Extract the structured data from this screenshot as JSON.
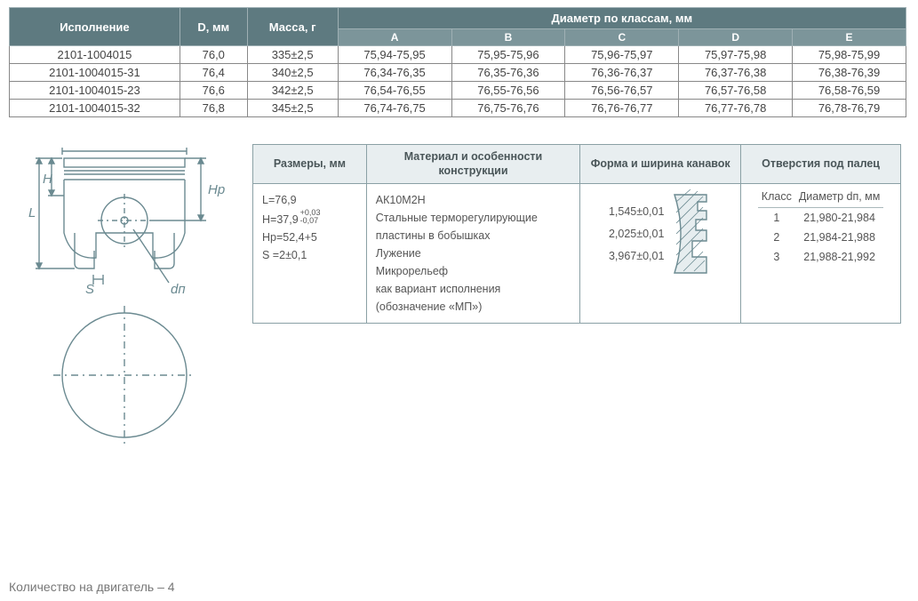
{
  "table1": {
    "headers": {
      "col1": "Исполнение",
      "col2": "D, мм",
      "col3": "Масса, г",
      "group": "Диаметр по классам, мм",
      "classes": [
        "A",
        "B",
        "C",
        "D",
        "E"
      ]
    },
    "rows": [
      {
        "exec": "2101-1004015",
        "d": "76,0",
        "mass": "335±2,5",
        "a": "75,94-75,95",
        "b": "75,95-75,96",
        "c": "75,96-75,97",
        "dcl": "75,97-75,98",
        "e": "75,98-75,99"
      },
      {
        "exec": "2101-1004015-31",
        "d": "76,4",
        "mass": "340±2,5",
        "a": "76,34-76,35",
        "b": "76,35-76,36",
        "c": "76,36-76,37",
        "dcl": "76,37-76,38",
        "e": "76,38-76,39"
      },
      {
        "exec": "2101-1004015-23",
        "d": "76,6",
        "mass": "342±2,5",
        "a": "76,54-76,55",
        "b": "76,55-76,56",
        "c": "76,56-76,57",
        "dcl": "76,57-76,58",
        "e": "76,58-76,59"
      },
      {
        "exec": "2101-1004015-32",
        "d": "76,8",
        "mass": "345±2,5",
        "a": "76,74-76,75",
        "b": "76,75-76,76",
        "c": "76,76-76,77",
        "dcl": "76,77-76,78",
        "e": "76,78-76,79"
      }
    ]
  },
  "table2": {
    "headers": {
      "dims": "Размеры, мм",
      "mat": "Материал и особенности конструкции",
      "groove": "Форма и ширина канавок",
      "pin": "Отверстия под палец"
    },
    "dims": {
      "L_label": "L=",
      "L": "76,9",
      "H_label": "H=",
      "H": "37,9",
      "H_tol_up": "+0,03",
      "H_tol_dn": "-0,07",
      "Hp_label": "Hp=",
      "Hp": "52,4+5",
      "S_label": "S =",
      "S": "2±0,1"
    },
    "material": {
      "l1": "АК10М2Н",
      "l2": "Стальные терморегулирующие пластины в бобышках",
      "l3": "Лужение",
      "l4": "Микрорельеф",
      "l5": "как вариант исполнения",
      "l6": "(обозначение «МП»)"
    },
    "grooves": [
      "1,545±0,01",
      "2,025±0,01",
      "3,967±0,01"
    ],
    "pin": {
      "h_class": "Класс",
      "h_dia": "Диаметр dп, мм",
      "rows": [
        {
          "k": "1",
          "v": "21,980-21,984"
        },
        {
          "k": "2",
          "v": "21,984-21,988"
        },
        {
          "k": "3",
          "v": "21,988-21,992"
        }
      ]
    }
  },
  "drawing_labels": {
    "L": "L",
    "H": "H",
    "Hp": "Hp",
    "S": "S",
    "dn": "dп"
  },
  "footer": "Количество на двигатель – 4"
}
